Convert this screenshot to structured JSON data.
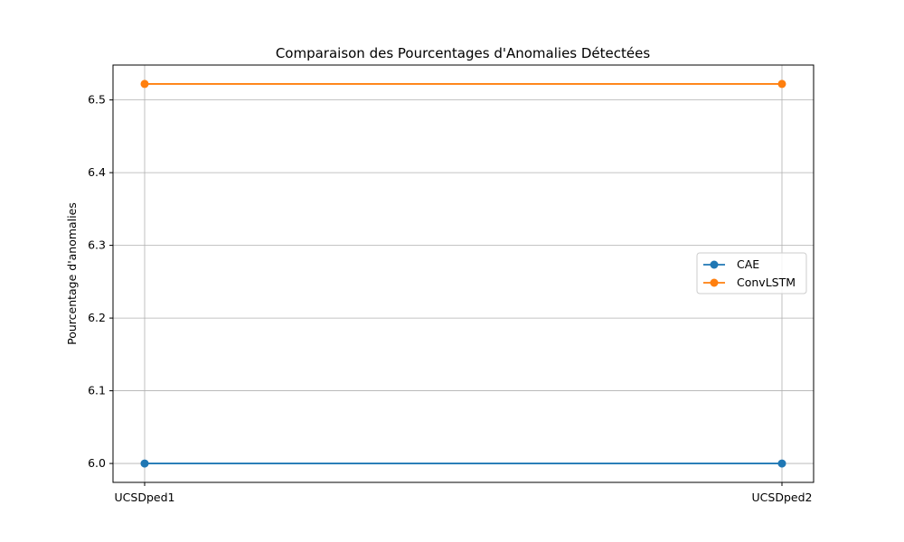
{
  "chart_data": {
    "type": "line",
    "title": "Comparaison des Pourcentages d'Anomalies Détectées",
    "xlabel": "",
    "ylabel": "Pourcentage d'anomalies",
    "categories": [
      "UCSDped1",
      "UCSDped2"
    ],
    "series": [
      {
        "name": "CAE",
        "values": [
          6.0,
          6.0
        ],
        "color": "#1f77b4"
      },
      {
        "name": "ConvLSTM",
        "values": [
          6.522,
          6.522
        ],
        "color": "#ff7f0e"
      }
    ],
    "ylim": [
      5.974,
      6.548
    ],
    "yticks": [
      6.0,
      6.1,
      6.2,
      6.3,
      6.4,
      6.5
    ],
    "ytick_labels": [
      "6.0",
      "6.1",
      "6.2",
      "6.3",
      "6.4",
      "6.5"
    ],
    "grid": true,
    "legend_position": "center-right"
  }
}
